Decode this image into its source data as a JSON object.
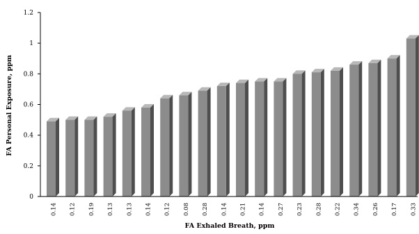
{
  "colors": {
    "bar_front": "#8c8c8c",
    "bar_side": "#4e4e4e",
    "bar_top": "#b8b8b8",
    "axis": "#000000",
    "background": "#ffffff"
  },
  "chart_data": {
    "type": "bar",
    "title": "",
    "xlabel": "FA Exhaled Breath, ppm",
    "ylabel": "FA Personal Exposure, ppm",
    "ylim": [
      0,
      1.2
    ],
    "yticks": [
      "0",
      "0.2",
      "0.4",
      "0.6",
      "0.8",
      "1",
      "1.2"
    ],
    "categories": [
      "0.14",
      "0.12",
      "0.19",
      "0.13",
      "0.13",
      "0.14",
      "0.12",
      "0.08",
      "0.28",
      "0.14",
      "0.21",
      "0.14",
      "0.27",
      "0.23",
      "0.28",
      "0.22",
      "0.34",
      "0.26",
      "0.17",
      "0.33"
    ],
    "values": [
      0.49,
      0.5,
      0.5,
      0.52,
      0.56,
      0.58,
      0.64,
      0.66,
      0.69,
      0.72,
      0.74,
      0.75,
      0.75,
      0.8,
      0.81,
      0.82,
      0.86,
      0.87,
      0.9,
      1.03
    ],
    "grid": false,
    "legend": "none",
    "style": "3d"
  }
}
